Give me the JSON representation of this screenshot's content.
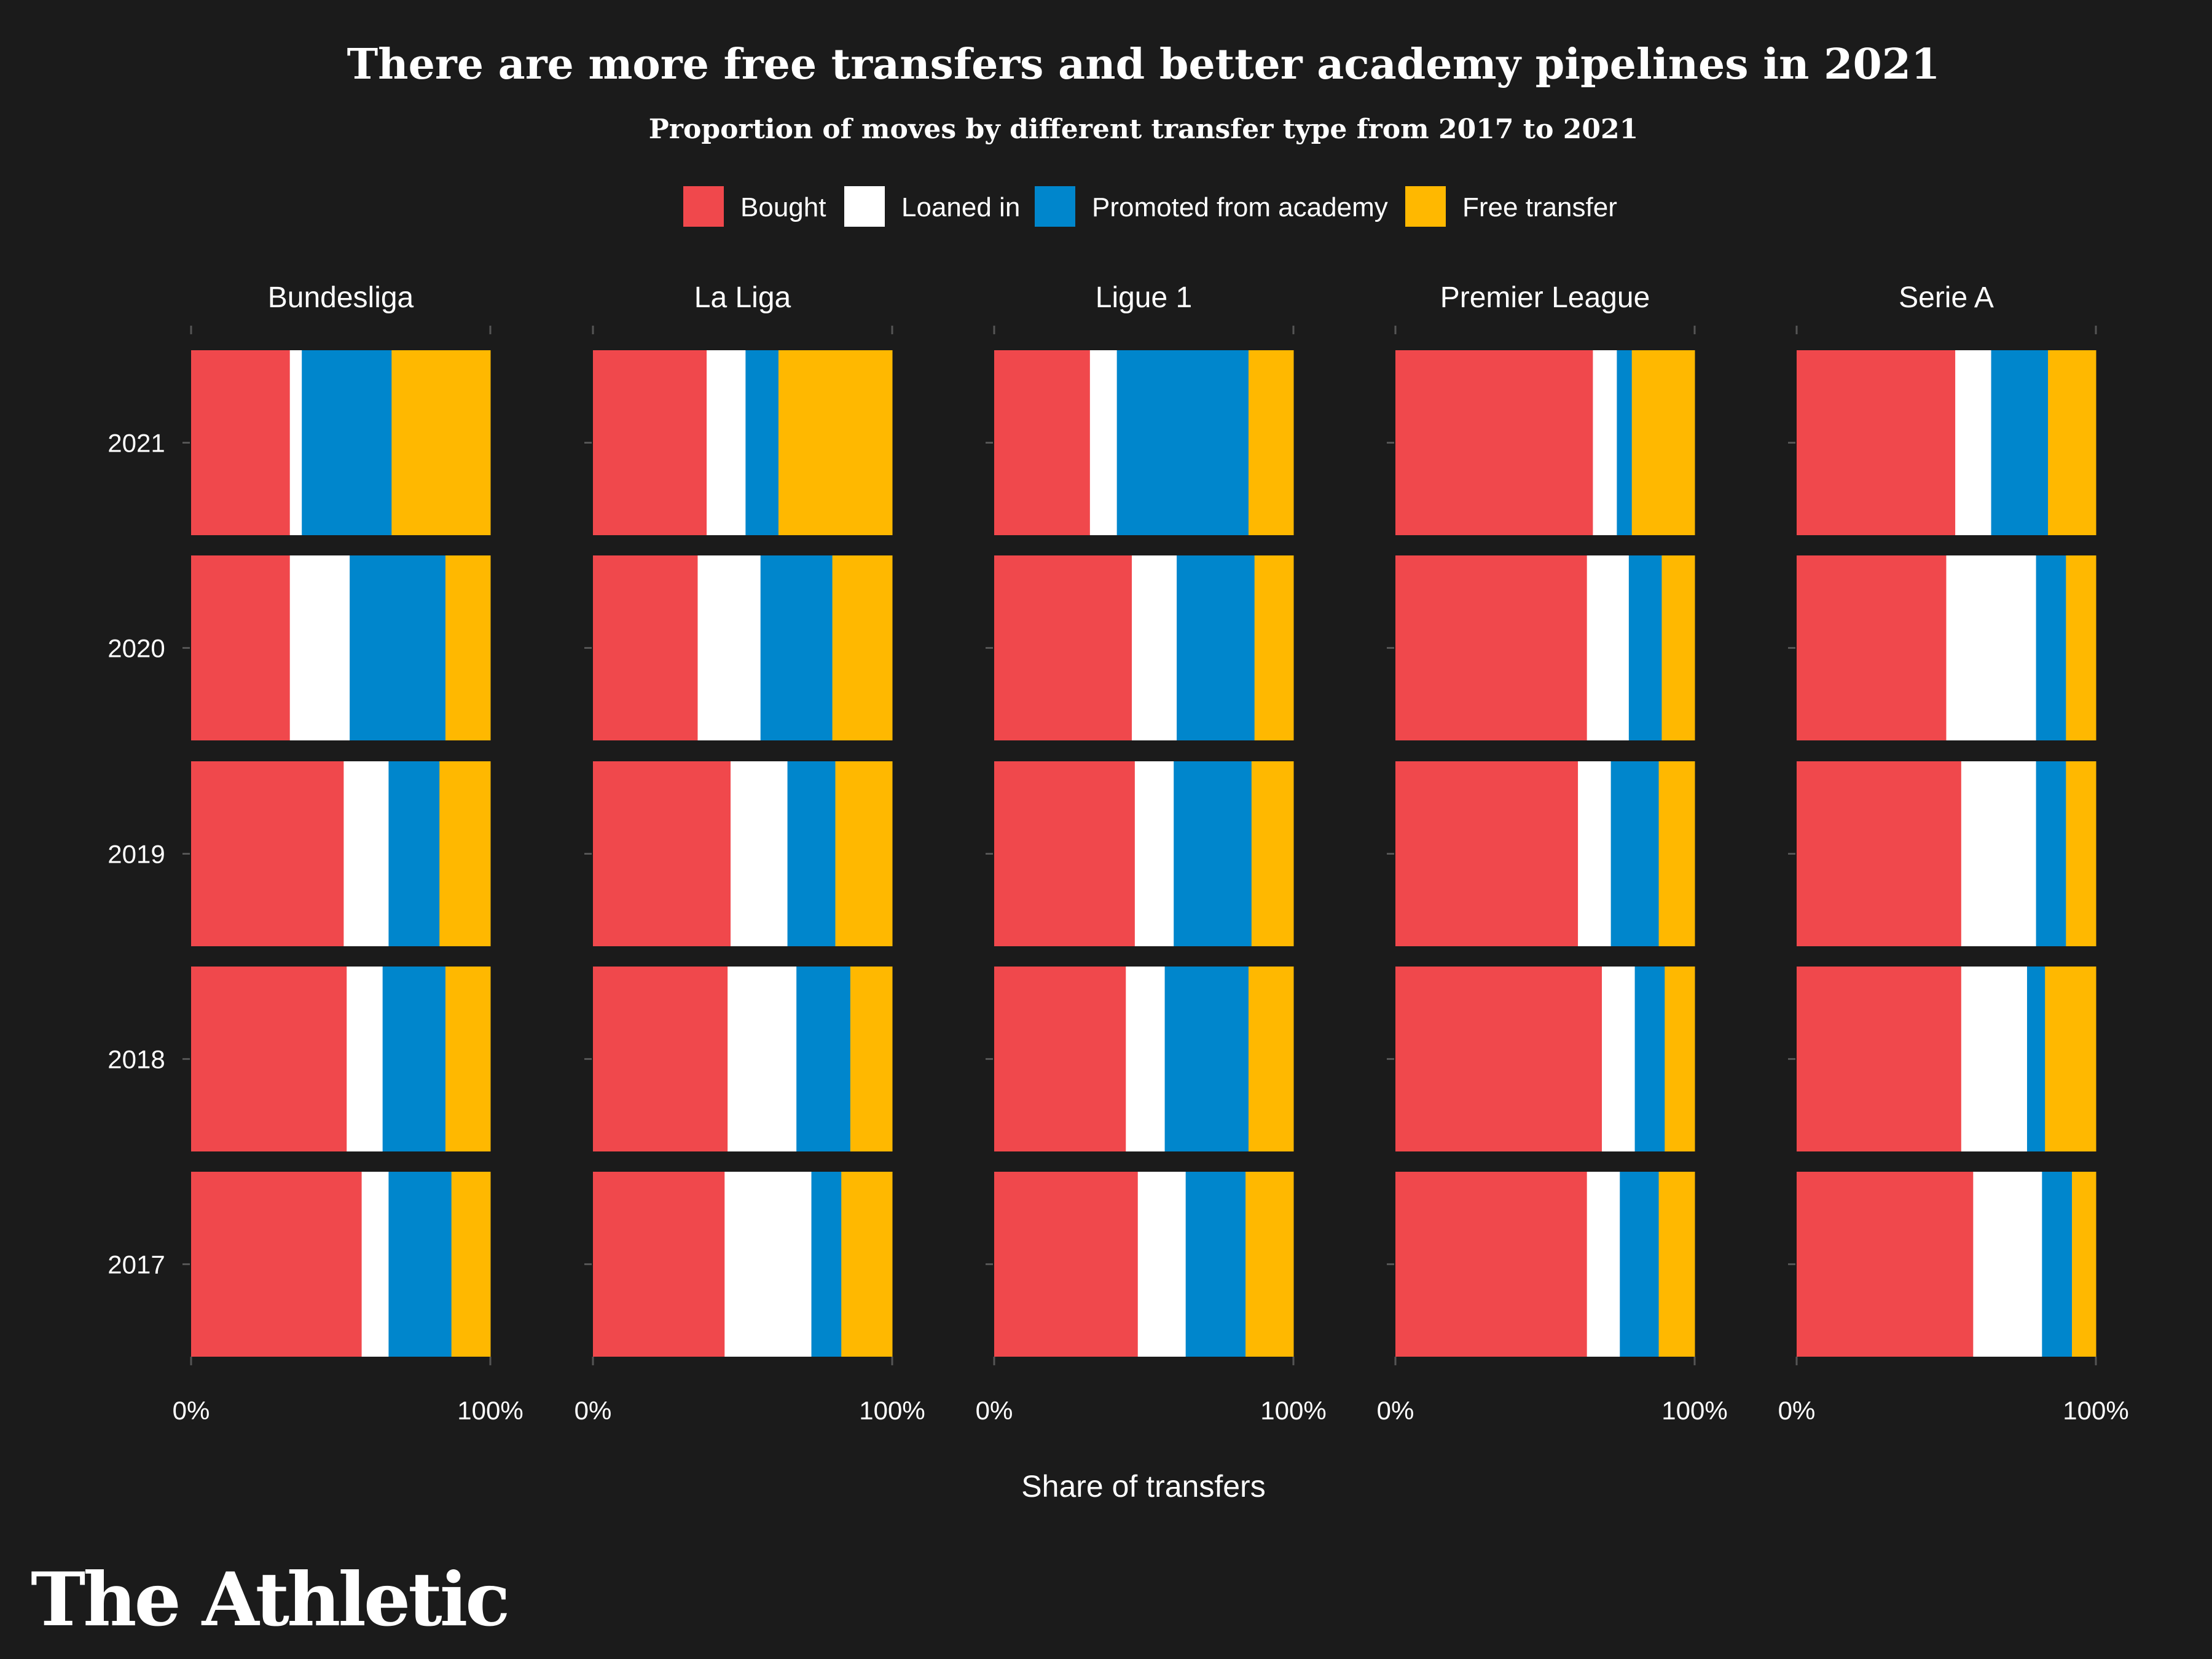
{
  "brand": "The Athletic",
  "colors": {
    "background": "#1b1b1b",
    "Bought": "#f0484c",
    "Loaned in": "#ffffff",
    "Promoted from academy": "#0086cc",
    "Free transfer": "#ffb800",
    "tick": "#555555"
  },
  "chart_data": {
    "type": "bar",
    "orientation": "horizontal",
    "stacked": "percent",
    "title": "There are more free transfers and better academy pipelines in 2021",
    "subtitle": "Proportion of moves by different transfer type from 2017 to 2021",
    "xlabel": "Share of transfers",
    "ylabel": "",
    "x_ticks": [
      "0%",
      "100%"
    ],
    "xlim": [
      0,
      100
    ],
    "legend_position": "top",
    "series_names": [
      "Bought",
      "Loaned in",
      "Promoted from academy",
      "Free transfer"
    ],
    "categories": [
      "2021",
      "2020",
      "2019",
      "2018",
      "2017"
    ],
    "facets": [
      {
        "name": "Bundesliga",
        "values": {
          "2021": [
            33,
            4,
            30,
            33
          ],
          "2020": [
            33,
            20,
            32,
            15
          ],
          "2019": [
            51,
            15,
            17,
            17
          ],
          "2018": [
            52,
            12,
            21,
            15
          ],
          "2017": [
            57,
            9,
            21,
            13
          ]
        }
      },
      {
        "name": "La Liga",
        "values": {
          "2021": [
            38,
            13,
            11,
            38
          ],
          "2020": [
            35,
            21,
            24,
            20
          ],
          "2019": [
            46,
            19,
            16,
            19
          ],
          "2018": [
            45,
            23,
            18,
            14
          ],
          "2017": [
            44,
            29,
            10,
            17
          ]
        }
      },
      {
        "name": "Ligue 1",
        "values": {
          "2021": [
            32,
            9,
            44,
            15
          ],
          "2020": [
            46,
            15,
            26,
            13
          ],
          "2019": [
            47,
            13,
            26,
            14
          ],
          "2018": [
            44,
            13,
            28,
            15
          ],
          "2017": [
            48,
            16,
            20,
            16
          ]
        }
      },
      {
        "name": "Premier League",
        "values": {
          "2021": [
            66,
            8,
            5,
            21
          ],
          "2020": [
            64,
            14,
            11,
            11
          ],
          "2019": [
            61,
            11,
            16,
            12
          ],
          "2018": [
            69,
            11,
            10,
            10
          ],
          "2017": [
            64,
            11,
            13,
            12
          ]
        }
      },
      {
        "name": "Serie A",
        "values": {
          "2021": [
            53,
            12,
            19,
            16
          ],
          "2020": [
            50,
            30,
            10,
            10
          ],
          "2019": [
            55,
            25,
            10,
            10
          ],
          "2018": [
            55,
            22,
            6,
            17
          ],
          "2017": [
            59,
            23,
            10,
            8
          ]
        }
      }
    ]
  }
}
